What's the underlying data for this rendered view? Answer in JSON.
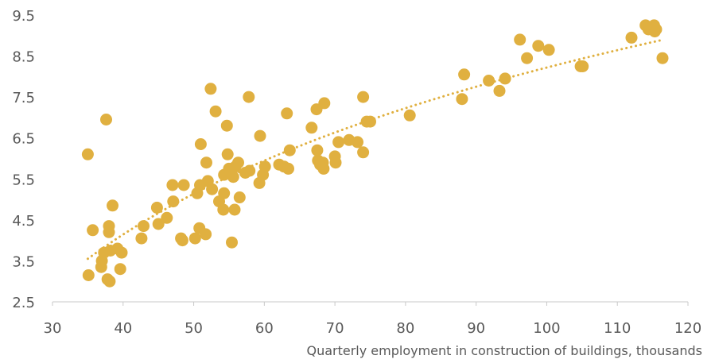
{
  "chart_data": {
    "type": "scatter",
    "title": "",
    "xlabel": "Quarterly employment in construction of buildings, thousands",
    "ylabel": "",
    "xlim": [
      30,
      120
    ],
    "ylim": [
      2.5,
      9.5
    ],
    "x_ticks": [
      "30",
      "40",
      "50",
      "60",
      "70",
      "80",
      "90",
      "100",
      "110",
      "120"
    ],
    "y_ticks": [
      "9.5",
      "8.5",
      "7.5",
      "6.5",
      "5.5",
      "4.5",
      "3.5",
      "2.5"
    ],
    "grid": false,
    "legend": "none",
    "marker_color": "#e0b040",
    "trendline": {
      "type": "log",
      "x_start": 35,
      "x_end": 116,
      "y_start": 3.55,
      "y_end": 8.88,
      "style": "dotted"
    },
    "points": [
      {
        "x": 35.0,
        "y": 6.1
      },
      {
        "x": 35.1,
        "y": 3.15
      },
      {
        "x": 35.7,
        "y": 4.25
      },
      {
        "x": 36.9,
        "y": 3.35
      },
      {
        "x": 37.0,
        "y": 3.5
      },
      {
        "x": 37.3,
        "y": 3.7
      },
      {
        "x": 37.6,
        "y": 6.95
      },
      {
        "x": 37.8,
        "y": 3.05
      },
      {
        "x": 38.1,
        "y": 3.0
      },
      {
        "x": 38.0,
        "y": 4.35
      },
      {
        "x": 38.0,
        "y": 4.2
      },
      {
        "x": 38.2,
        "y": 3.75
      },
      {
        "x": 38.5,
        "y": 4.85
      },
      {
        "x": 39.2,
        "y": 3.8
      },
      {
        "x": 39.6,
        "y": 3.3
      },
      {
        "x": 39.8,
        "y": 3.7
      },
      {
        "x": 42.6,
        "y": 4.05
      },
      {
        "x": 42.9,
        "y": 4.35
      },
      {
        "x": 44.8,
        "y": 4.8
      },
      {
        "x": 45.0,
        "y": 4.4
      },
      {
        "x": 46.2,
        "y": 4.55
      },
      {
        "x": 47.0,
        "y": 5.35
      },
      {
        "x": 47.1,
        "y": 4.95
      },
      {
        "x": 48.2,
        "y": 4.05
      },
      {
        "x": 48.4,
        "y": 4.0
      },
      {
        "x": 48.6,
        "y": 5.35
      },
      {
        "x": 50.2,
        "y": 4.05
      },
      {
        "x": 50.5,
        "y": 5.15
      },
      {
        "x": 50.8,
        "y": 4.3
      },
      {
        "x": 50.9,
        "y": 5.35
      },
      {
        "x": 51.0,
        "y": 6.35
      },
      {
        "x": 51.7,
        "y": 4.15
      },
      {
        "x": 51.8,
        "y": 5.9
      },
      {
        "x": 52.0,
        "y": 5.45
      },
      {
        "x": 52.4,
        "y": 7.7
      },
      {
        "x": 52.6,
        "y": 5.25
      },
      {
        "x": 53.1,
        "y": 7.15
      },
      {
        "x": 53.6,
        "y": 4.95
      },
      {
        "x": 54.2,
        "y": 4.75
      },
      {
        "x": 54.3,
        "y": 5.6
      },
      {
        "x": 54.3,
        "y": 5.15
      },
      {
        "x": 54.7,
        "y": 6.8
      },
      {
        "x": 54.8,
        "y": 6.1
      },
      {
        "x": 55.0,
        "y": 5.75
      },
      {
        "x": 55.4,
        "y": 3.95
      },
      {
        "x": 55.6,
        "y": 5.55
      },
      {
        "x": 55.8,
        "y": 4.75
      },
      {
        "x": 55.9,
        "y": 5.8
      },
      {
        "x": 56.3,
        "y": 5.9
      },
      {
        "x": 56.5,
        "y": 5.05
      },
      {
        "x": 57.3,
        "y": 5.65
      },
      {
        "x": 57.8,
        "y": 7.5
      },
      {
        "x": 57.9,
        "y": 5.7
      },
      {
        "x": 59.3,
        "y": 5.4
      },
      {
        "x": 59.4,
        "y": 6.55
      },
      {
        "x": 59.8,
        "y": 5.6
      },
      {
        "x": 60.1,
        "y": 5.8
      },
      {
        "x": 62.1,
        "y": 5.85
      },
      {
        "x": 62.8,
        "y": 5.8
      },
      {
        "x": 63.2,
        "y": 7.1
      },
      {
        "x": 63.4,
        "y": 5.75
      },
      {
        "x": 63.6,
        "y": 6.2
      },
      {
        "x": 66.7,
        "y": 6.75
      },
      {
        "x": 67.4,
        "y": 7.2
      },
      {
        "x": 67.5,
        "y": 6.2
      },
      {
        "x": 67.6,
        "y": 5.95
      },
      {
        "x": 67.9,
        "y": 5.85
      },
      {
        "x": 68.3,
        "y": 5.9
      },
      {
        "x": 68.4,
        "y": 5.75
      },
      {
        "x": 68.5,
        "y": 7.35
      },
      {
        "x": 70.0,
        "y": 6.05
      },
      {
        "x": 70.1,
        "y": 5.9
      },
      {
        "x": 70.5,
        "y": 6.4
      },
      {
        "x": 72.0,
        "y": 6.45
      },
      {
        "x": 73.2,
        "y": 6.4
      },
      {
        "x": 74.0,
        "y": 7.5
      },
      {
        "x": 74.0,
        "y": 6.15
      },
      {
        "x": 74.5,
        "y": 6.9
      },
      {
        "x": 75.0,
        "y": 6.9
      },
      {
        "x": 80.6,
        "y": 7.05
      },
      {
        "x": 88.0,
        "y": 7.45
      },
      {
        "x": 88.3,
        "y": 8.05
      },
      {
        "x": 91.8,
        "y": 7.9
      },
      {
        "x": 93.3,
        "y": 7.65
      },
      {
        "x": 94.1,
        "y": 7.95
      },
      {
        "x": 96.2,
        "y": 8.9
      },
      {
        "x": 97.2,
        "y": 8.45
      },
      {
        "x": 98.8,
        "y": 8.75
      },
      {
        "x": 100.3,
        "y": 8.65
      },
      {
        "x": 104.8,
        "y": 8.25
      },
      {
        "x": 105.1,
        "y": 8.25
      },
      {
        "x": 112.0,
        "y": 8.95
      },
      {
        "x": 114.0,
        "y": 9.25
      },
      {
        "x": 114.4,
        "y": 9.15
      },
      {
        "x": 114.9,
        "y": 9.2
      },
      {
        "x": 115.2,
        "y": 9.25
      },
      {
        "x": 115.3,
        "y": 9.1
      },
      {
        "x": 115.5,
        "y": 9.15
      },
      {
        "x": 116.4,
        "y": 8.45
      }
    ]
  }
}
